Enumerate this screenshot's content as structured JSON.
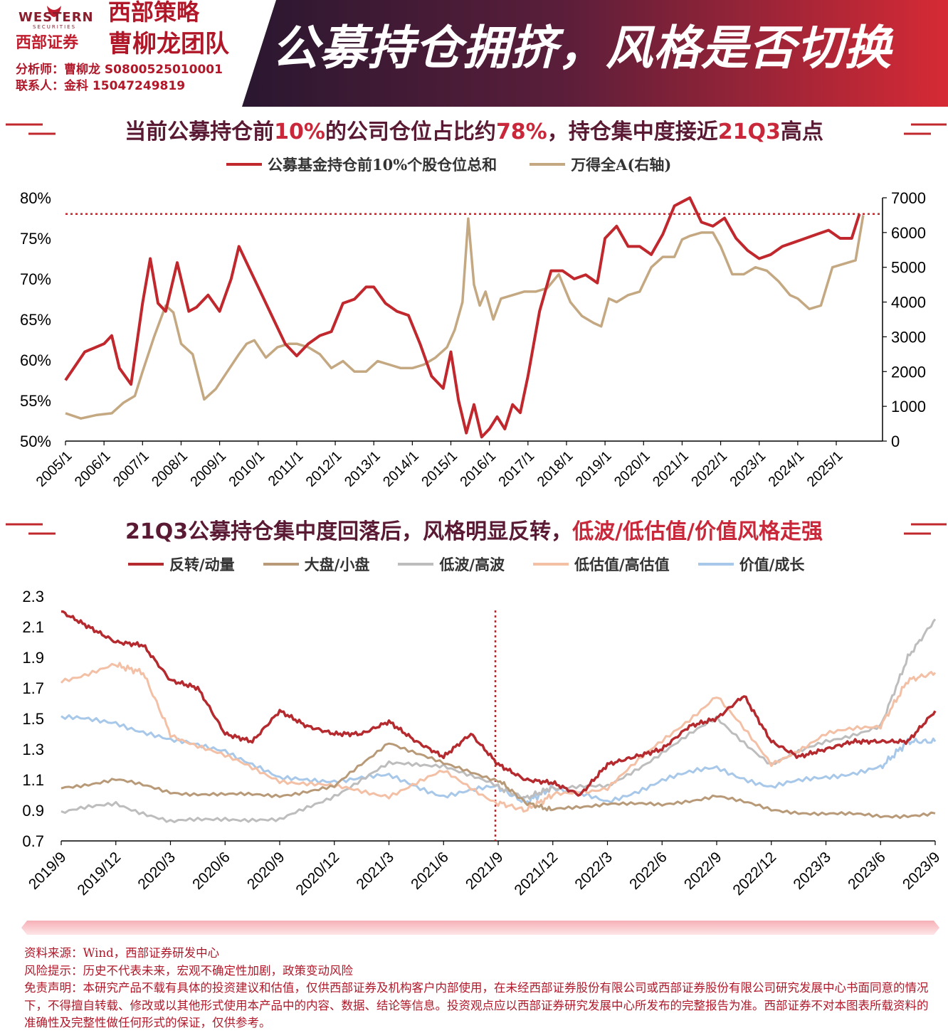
{
  "header": {
    "logo_en": "WESTERN",
    "logo_sub": "SECURITIES",
    "logo_cn": "西部证券",
    "team_line1": "西部策略",
    "team_line2": "曹柳龙团队",
    "analyst": "分析师：曹柳龙  S0800525010001",
    "contact": "联系人：金科  15047249819",
    "headline": "公募持仓拥挤，风格是否切换"
  },
  "chart1": {
    "title_a": "当前公募持仓前",
    "title_b": "10%",
    "title_c": "的公司仓位占比约",
    "title_d": "78%",
    "title_e": "，持仓集中度接近",
    "title_f": "21Q3",
    "title_g": "高点",
    "legend": [
      "公募基金持仓前10%个股仓位总和",
      "万得全A(右轴)"
    ],
    "colors": [
      "#c0282d",
      "#c4a882"
    ]
  },
  "chart2": {
    "title_a": "21Q3",
    "title_b": "公募持仓集中度回落后，风格明显反转，",
    "title_c": "低波/低估值/价值风格走强",
    "legend": [
      "反转/动量",
      "大盘/小盘",
      "低波/高波",
      "低估值/高估值",
      "价值/成长"
    ],
    "colors": [
      "#b52a2e",
      "#b89a78",
      "#bdbdbd",
      "#f3c0a6",
      "#a8c8ea"
    ]
  },
  "footer": {
    "source": "资料来源：Wind，西部证券研发中心",
    "risk": "风险提示：历史不代表未来，宏观不确定性加剧，政策变动风险",
    "disclaimer": "免责声明：本研究产品不载有具体的投资建议和估值，仅供西部证券及机构客户内部使用，在未经西部证券股份有限公司或西部证券股份有限公司研究发展中心书面同意的情况下，不得擅自转载、修改或以其他形式使用本产品中的内容、数据、结论等信息。投资观点应以西部证券研究发展中心所发布的完整报告为准。西部证券不对本图表所载资料的准确性及完整性做任何形式的保证，仅供参考。"
  },
  "chart_data": [
    {
      "type": "line",
      "title": "当前公募持仓前10%的公司仓位占比约78%，持仓集中度接近21Q3高点",
      "x_ticks": [
        "2005/1",
        "2006/1",
        "2007/1",
        "2008/1",
        "2009/1",
        "2010/1",
        "2011/1",
        "2012/1",
        "2013/1",
        "2014/1",
        "2015/1",
        "2016/1",
        "2017/1",
        "2018/1",
        "2019/1",
        "2020/1",
        "2021/1",
        "2022/1",
        "2023/1",
        "2024/1",
        "2025/1"
      ],
      "y_left_ticks": [
        "50%",
        "55%",
        "60%",
        "65%",
        "70%",
        "75%",
        "80%"
      ],
      "y_right_ticks": [
        "0",
        "1000",
        "2000",
        "3000",
        "4000",
        "5000",
        "6000",
        "7000"
      ],
      "ylim_left": [
        50,
        80
      ],
      "ylim_right": [
        0,
        7000
      ],
      "reference_line_left": 78,
      "series": [
        {
          "name": "公募基金持仓前10%个股仓位总和",
          "axis": "left",
          "x": [
            2005.0,
            2005.5,
            2006.0,
            2006.2,
            2006.4,
            2006.7,
            2007.0,
            2007.2,
            2007.4,
            2007.6,
            2007.9,
            2008.2,
            2008.4,
            2008.7,
            2009.0,
            2009.3,
            2009.5,
            2009.8,
            2010.1,
            2010.4,
            2010.7,
            2011.0,
            2011.3,
            2011.6,
            2011.9,
            2012.2,
            2012.5,
            2012.8,
            2013.0,
            2013.3,
            2013.6,
            2013.9,
            2014.2,
            2014.5,
            2014.8,
            2015.0,
            2015.2,
            2015.4,
            2015.6,
            2015.8,
            2016.0,
            2016.2,
            2016.4,
            2016.6,
            2016.8,
            2017.0,
            2017.3,
            2017.6,
            2017.9,
            2018.2,
            2018.5,
            2018.8,
            2019.0,
            2019.3,
            2019.6,
            2019.9,
            2020.2,
            2020.5,
            2020.8,
            2021.0,
            2021.2,
            2021.5,
            2021.8,
            2022.1,
            2022.4,
            2022.7,
            2023.0,
            2023.3,
            2023.6,
            2023.9,
            2024.2,
            2024.5,
            2024.8,
            2025.1,
            2025.4,
            2025.6
          ],
          "y": [
            57.5,
            61,
            62,
            63,
            59,
            57,
            67,
            72.5,
            67,
            66,
            72,
            66,
            66.5,
            68,
            66,
            70,
            74,
            71,
            68,
            65,
            62,
            60.5,
            62,
            63,
            63.5,
            67,
            67.5,
            69,
            69,
            67,
            66,
            65.5,
            62,
            58,
            56.5,
            61,
            55,
            51,
            54.5,
            50.5,
            51.5,
            53,
            51.5,
            54.5,
            53.5,
            58,
            66,
            71,
            71,
            70,
            70.5,
            69.5,
            75,
            76.5,
            74,
            74,
            73,
            75.5,
            79,
            79.5,
            80,
            77,
            76.5,
            77.5,
            75,
            73.5,
            72.5,
            73,
            74,
            74.5,
            75,
            75.5,
            76,
            75,
            75,
            78
          ]
        },
        {
          "name": "万得全A(右轴)",
          "axis": "right",
          "x": [
            2005.0,
            2005.4,
            2005.8,
            2006.2,
            2006.5,
            2006.8,
            2007.0,
            2007.3,
            2007.6,
            2007.8,
            2008.0,
            2008.3,
            2008.6,
            2008.9,
            2009.2,
            2009.5,
            2009.7,
            2009.9,
            2010.2,
            2010.5,
            2010.8,
            2011.0,
            2011.3,
            2011.6,
            2011.9,
            2012.2,
            2012.5,
            2012.8,
            2013.1,
            2013.4,
            2013.7,
            2014.0,
            2014.3,
            2014.6,
            2014.9,
            2015.1,
            2015.3,
            2015.45,
            2015.6,
            2015.75,
            2015.9,
            2016.1,
            2016.3,
            2016.6,
            2016.9,
            2017.2,
            2017.5,
            2017.8,
            2018.1,
            2018.4,
            2018.7,
            2018.9,
            2019.1,
            2019.3,
            2019.6,
            2019.9,
            2020.2,
            2020.5,
            2020.8,
            2021.0,
            2021.2,
            2021.5,
            2021.8,
            2022.0,
            2022.3,
            2022.6,
            2022.9,
            2023.2,
            2023.5,
            2023.8,
            2024.0,
            2024.3,
            2024.6,
            2024.9,
            2025.2,
            2025.5,
            2025.7
          ],
          "y": [
            800,
            650,
            750,
            800,
            1100,
            1300,
            2000,
            3000,
            3900,
            3700,
            2800,
            2500,
            1200,
            1500,
            2000,
            2500,
            2800,
            2900,
            2400,
            2700,
            2800,
            2800,
            2700,
            2500,
            2100,
            2300,
            2000,
            2000,
            2300,
            2200,
            2100,
            2100,
            2200,
            2400,
            2700,
            3200,
            4000,
            6400,
            4500,
            3900,
            4300,
            3500,
            4100,
            4200,
            4300,
            4300,
            4400,
            4800,
            4000,
            3600,
            3400,
            3300,
            4100,
            4000,
            4200,
            4300,
            5000,
            5300,
            5300,
            5800,
            5900,
            6000,
            6000,
            5600,
            4800,
            4800,
            5000,
            4900,
            4600,
            4200,
            4100,
            3800,
            3900,
            5000,
            5100,
            5200,
            6500
          ]
        }
      ]
    },
    {
      "type": "line",
      "title": "21Q3公募持仓集中度回落后，风格明显反转，低波/低估值/价值风格走强",
      "x_ticks": [
        "2019/9",
        "2019/12",
        "2020/3",
        "2020/6",
        "2020/9",
        "2020/12",
        "2021/3",
        "2021/6",
        "2021/9",
        "2021/12",
        "2022/3",
        "2022/6",
        "2022/9",
        "2022/12",
        "2023/3",
        "2023/6",
        "2023/9"
      ],
      "y_ticks": [
        "0.7",
        "0.9",
        "1.1",
        "1.3",
        "1.5",
        "1.7",
        "1.9",
        "2.1",
        "2.3"
      ],
      "ylim": [
        0.7,
        2.3
      ],
      "reference_line_x": "2021/9",
      "series": [
        {
          "name": "反转/动量",
          "x": [
            0,
            0.5,
            1,
            1.5,
            2,
            2.5,
            3,
            3.5,
            4,
            4.5,
            5,
            5.5,
            6,
            6.5,
            7,
            7.5,
            8,
            8.5,
            9,
            9.5,
            10,
            10.5,
            11,
            11.5,
            12,
            12.5,
            13,
            13.5,
            14,
            14.5,
            15,
            15.5,
            16
          ],
          "y": [
            2.2,
            2.1,
            2.0,
            1.98,
            1.75,
            1.7,
            1.4,
            1.35,
            1.55,
            1.45,
            1.4,
            1.4,
            1.48,
            1.35,
            1.25,
            1.4,
            1.2,
            1.1,
            1.08,
            1.0,
            1.2,
            1.25,
            1.3,
            1.45,
            1.5,
            1.65,
            1.35,
            1.25,
            1.3,
            1.35,
            1.35,
            1.35,
            1.55
          ]
        },
        {
          "name": "大盘/小盘",
          "x": [
            0,
            1,
            2,
            3,
            4,
            5,
            6,
            7,
            8,
            8.5,
            9,
            10,
            11,
            12,
            13,
            14,
            15,
            16
          ],
          "y": [
            1.05,
            1.1,
            1.02,
            1.0,
            1.0,
            1.05,
            1.35,
            1.2,
            1.1,
            0.95,
            0.9,
            0.95,
            0.93,
            1.0,
            0.9,
            0.88,
            0.86,
            0.88
          ]
        },
        {
          "name": "低波/高波",
          "x": [
            0,
            1,
            2,
            3,
            4,
            5,
            6,
            7,
            8,
            8.5,
            9,
            10,
            11,
            12,
            13,
            14,
            15,
            15.5,
            16
          ],
          "y": [
            0.88,
            0.95,
            0.82,
            0.85,
            0.83,
            1.0,
            1.2,
            1.2,
            1.05,
            0.98,
            1.05,
            1.05,
            1.28,
            1.5,
            1.2,
            1.35,
            1.45,
            1.9,
            2.15
          ]
        },
        {
          "name": "低估值/高估值",
          "x": [
            0,
            1,
            1.5,
            2,
            3,
            4,
            5,
            6,
            7,
            8,
            8.5,
            9,
            10,
            11,
            12,
            13,
            14,
            15,
            15.5,
            16
          ],
          "y": [
            1.75,
            1.85,
            1.8,
            1.4,
            1.25,
            1.1,
            1.05,
            1.0,
            1.15,
            0.95,
            0.9,
            1.0,
            1.05,
            1.35,
            1.65,
            1.2,
            1.4,
            1.45,
            1.75,
            1.8
          ]
        },
        {
          "name": "价值/成长",
          "x": [
            0,
            1,
            2,
            3,
            4,
            5,
            6,
            7,
            8,
            8.5,
            9,
            10,
            11,
            12,
            13,
            14,
            15,
            15.5,
            16
          ],
          "y": [
            1.5,
            1.48,
            1.35,
            1.3,
            1.1,
            1.1,
            1.12,
            1.0,
            1.05,
            0.95,
            1.05,
            0.95,
            1.1,
            1.18,
            1.05,
            1.12,
            1.18,
            1.35,
            1.35
          ]
        }
      ]
    }
  ]
}
